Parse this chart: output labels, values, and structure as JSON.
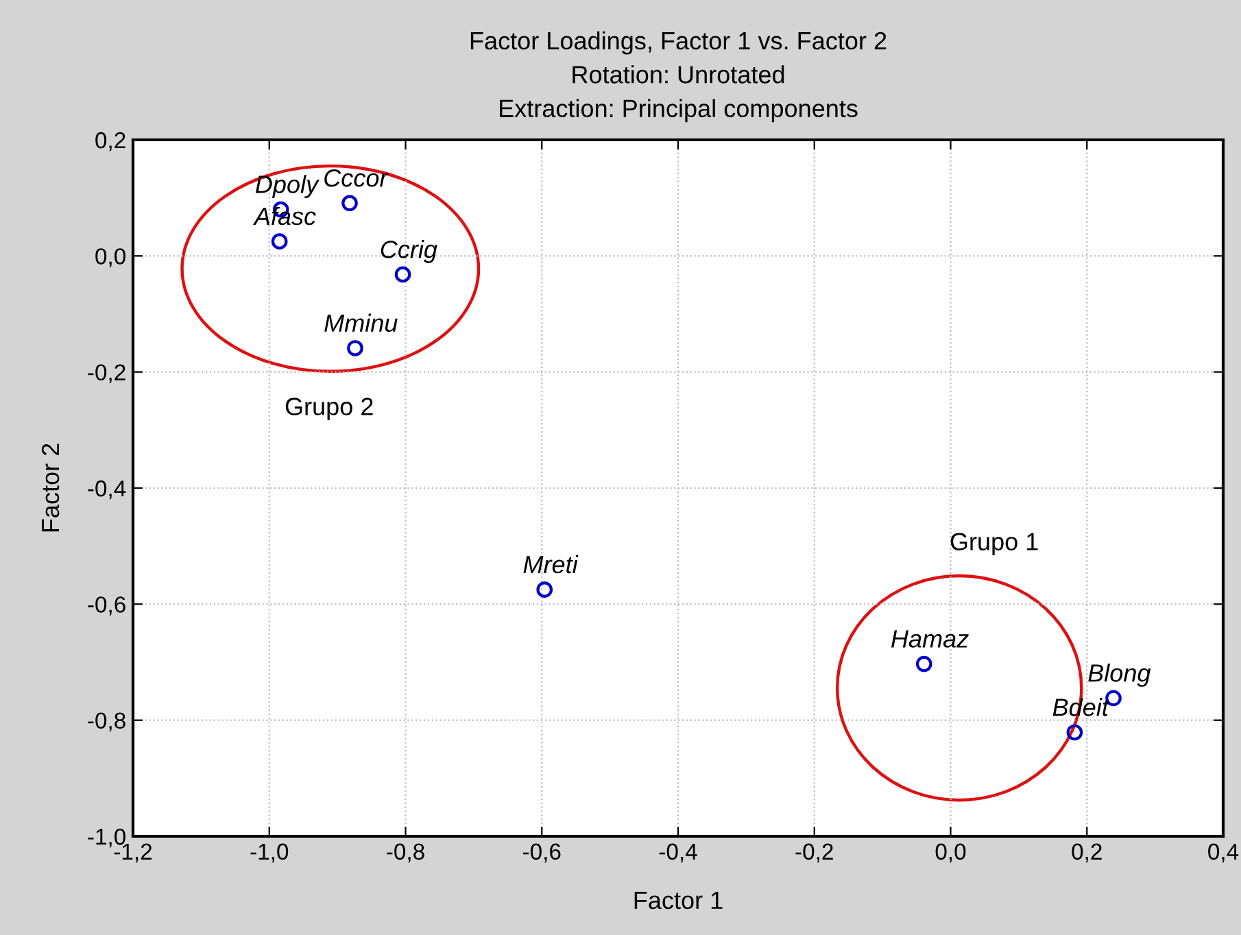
{
  "chart_data": {
    "type": "scatter",
    "title": "Factor Loadings, Factor 1 vs. Factor 2\nRotation: Unrotated\nExtraction: Principal components",
    "xlabel": "Factor 1",
    "ylabel": "Factor 2",
    "series": [
      {
        "color": "#0000cc",
        "x": [
          -0.983,
          -0.882,
          -0.985,
          -0.804,
          -0.874,
          -0.596,
          -0.039,
          0.239,
          0.182
        ],
        "values": [
          0.08,
          0.091,
          0.025,
          -0.032,
          -0.159,
          -0.575,
          -0.703,
          -0.762,
          -0.821
        ]
      }
    ],
    "annotations": [
      {
        "text": "Dpoly",
        "x": -0.983,
        "y": 0.08
      },
      {
        "text": "Cccor",
        "x": -0.882,
        "y": 0.091
      },
      {
        "text": "Afasc",
        "x": -0.985,
        "y": 0.025
      },
      {
        "text": "Ccrig",
        "x": -0.804,
        "y": -0.032
      },
      {
        "text": "Mminu",
        "x": -0.874,
        "y": -0.159
      },
      {
        "text": "Mreti",
        "x": -0.596,
        "y": -0.575
      },
      {
        "text": "Hamaz",
        "x": -0.039,
        "y": -0.703
      },
      {
        "text": "Blong",
        "x": 0.239,
        "y": -0.762
      },
      {
        "text": "Bdeit",
        "x": 0.182,
        "y": -0.821
      },
      "Grupo 2",
      "Grupo 1"
    ],
    "xlim": [
      -1.2,
      0.4
    ],
    "ylim": [
      -1.0,
      0.2
    ],
    "xticks": [
      {
        "value": -1.2,
        "label": "-1,2"
      },
      {
        "value": -1.0,
        "label": "-1,0"
      },
      {
        "value": -0.8,
        "label": "-0,8"
      },
      {
        "value": -0.6,
        "label": "-0,6"
      },
      {
        "value": -0.4,
        "label": "-0,4"
      },
      {
        "value": -0.2,
        "label": "-0,2"
      },
      {
        "value": 0.0,
        "label": "0,0"
      },
      {
        "value": 0.2,
        "label": "0,2"
      },
      {
        "value": 0.4,
        "label": "0,4"
      }
    ],
    "yticks": [
      {
        "value": -1.0,
        "label": "-1,0"
      },
      {
        "value": -0.8,
        "label": "-0,8"
      },
      {
        "value": -0.6,
        "label": "-0,6"
      },
      {
        "value": -0.4,
        "label": "-0,4"
      },
      {
        "value": -0.2,
        "label": "-0,2"
      },
      {
        "value": 0.0,
        "label": "0,0"
      },
      {
        "value": 0.2,
        "label": "0,2"
      }
    ],
    "grid": true,
    "marker": "circle",
    "legend": false
  }
}
